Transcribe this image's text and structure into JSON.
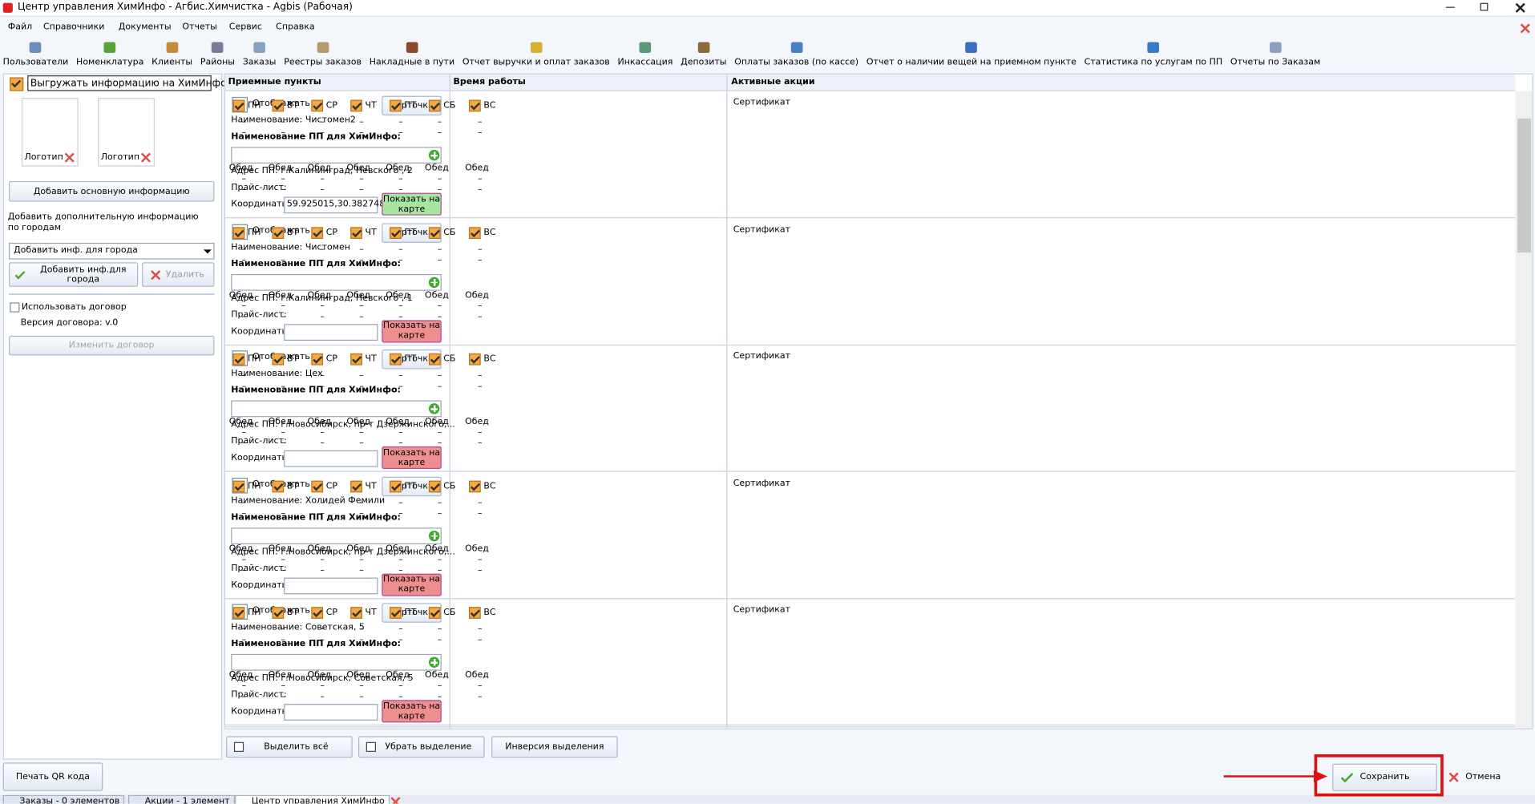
{
  "window": {
    "title": "Центр управления ХимИнфо - Агбис.Химчистка - Agbis (Рабочая)"
  },
  "menu": [
    "Файл",
    "Справочники",
    "Документы",
    "Отчеты",
    "Сервис",
    "Справка"
  ],
  "toolbar": [
    "Пользователи",
    "Номенклатура",
    "Клиенты",
    "Районы",
    "Заказы",
    "Реестры заказов",
    "Накладные в пути",
    "Отчет выручки и оплат заказов",
    "Инкассация",
    "Депозиты",
    "Оплаты заказов (по кассе)",
    "Отчет о наличии вещей на приемном пункте",
    "Статистика по услугам по ПП",
    "Отчеты по Заказам"
  ],
  "left_panel": {
    "export_checkbox": "Выгружать информацию на ХимИнфо",
    "logo_label": "Логотип",
    "add_main": "Добавить основную информацию",
    "add_extra": "Добавить дополнительную информацию по городам",
    "city_select": "Добавить инф. для города",
    "add_city": "Добавить инф.для города",
    "delete": "Удалить",
    "use_contract": "Использовать договор",
    "contract_version": "Версия договора: v.0",
    "change_contract": "Изменить договор"
  },
  "columns": [
    "Приемные пункты",
    "Время работы",
    "Активные акции"
  ],
  "row_labels": {
    "display": "Отображать",
    "card": "Карточка",
    "name_label": "Наименование ПП для ХимИнфо:",
    "price": "Прайс-лист:",
    "coords": "Координаты",
    "show_map": "Показать на карте",
    "lunch": "Обед",
    "dash": "–"
  },
  "days": [
    "ПН",
    "ВТ",
    "СР",
    "ЧТ",
    "ПТ",
    "СБ",
    "ВС"
  ],
  "rows": [
    {
      "name": "Наименование: Чистомен2",
      "address": "Адрес ПП: г.Калининград, Невского , 2",
      "coordinates": "59.925015,30.382748",
      "promo": "Сертификат"
    },
    {
      "name": "Наименование: Чистомен",
      "address": "Адрес ПП: г.Калининград, Невского , 1",
      "promo": "Сертификат"
    },
    {
      "name": "Наименование: Цех",
      "address": "Адрес ПП: г.Новосибирск, пр-т Дзержинского,...",
      "promo": "Сертификат"
    },
    {
      "name": "Наименование: Холидей Фемили",
      "address": "Адрес ПП: г.Новосибирск, пр-т Дзержинского,...",
      "promo": "Сертификат"
    },
    {
      "name": "Наименование: Советская, 5",
      "address": "Адрес ПП: г.Новосибирск, Советская, 5",
      "promo": "Сертификат"
    }
  ],
  "bottom_buttons": [
    "Выделить всё",
    "Убрать выделение",
    "Инверсия выделения"
  ],
  "footer": {
    "print_qr": "Печать QR кода",
    "save": "Сохранить",
    "cancel": "Отмена"
  },
  "tabs": [
    "Заказы - 0 элементов",
    "Акции - 1 элемент",
    "Центр управления ХимИнфо"
  ]
}
